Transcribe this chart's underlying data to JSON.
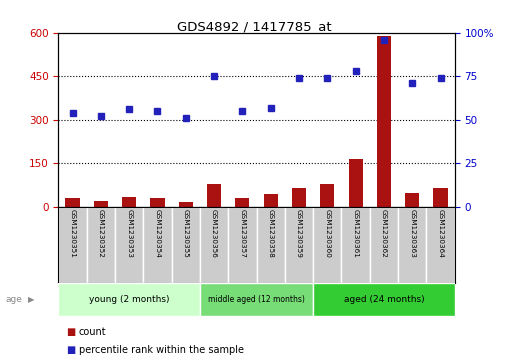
{
  "title": "GDS4892 / 1417785_at",
  "samples": [
    "GSM1230351",
    "GSM1230352",
    "GSM1230353",
    "GSM1230354",
    "GSM1230355",
    "GSM1230356",
    "GSM1230357",
    "GSM1230358",
    "GSM1230359",
    "GSM1230360",
    "GSM1230361",
    "GSM1230362",
    "GSM1230363",
    "GSM1230364"
  ],
  "count_values": [
    30,
    22,
    35,
    30,
    18,
    80,
    30,
    45,
    65,
    78,
    165,
    590,
    48,
    65
  ],
  "percentile_values": [
    54,
    52,
    56,
    55,
    51,
    75,
    55,
    57,
    74,
    74,
    78,
    96,
    71,
    74
  ],
  "groups": [
    {
      "label": "young (2 months)",
      "start": 0,
      "end": 5
    },
    {
      "label": "middle aged (12 months)",
      "start": 5,
      "end": 9
    },
    {
      "label": "aged (24 months)",
      "start": 9,
      "end": 14
    }
  ],
  "group_colors": [
    "#CCFFCC",
    "#77DD77",
    "#33CC33"
  ],
  "ylim_left": [
    0,
    600
  ],
  "ylim_right": [
    0,
    100
  ],
  "yticks_left": [
    0,
    150,
    300,
    450,
    600
  ],
  "yticks_right": [
    0,
    25,
    50,
    75,
    100
  ],
  "bar_color": "#AA1111",
  "dot_color": "#2222BB",
  "grid_color": "#000000",
  "label_color_left": "#CC0000",
  "label_color_right": "#0000CC",
  "title_color": "#000000"
}
